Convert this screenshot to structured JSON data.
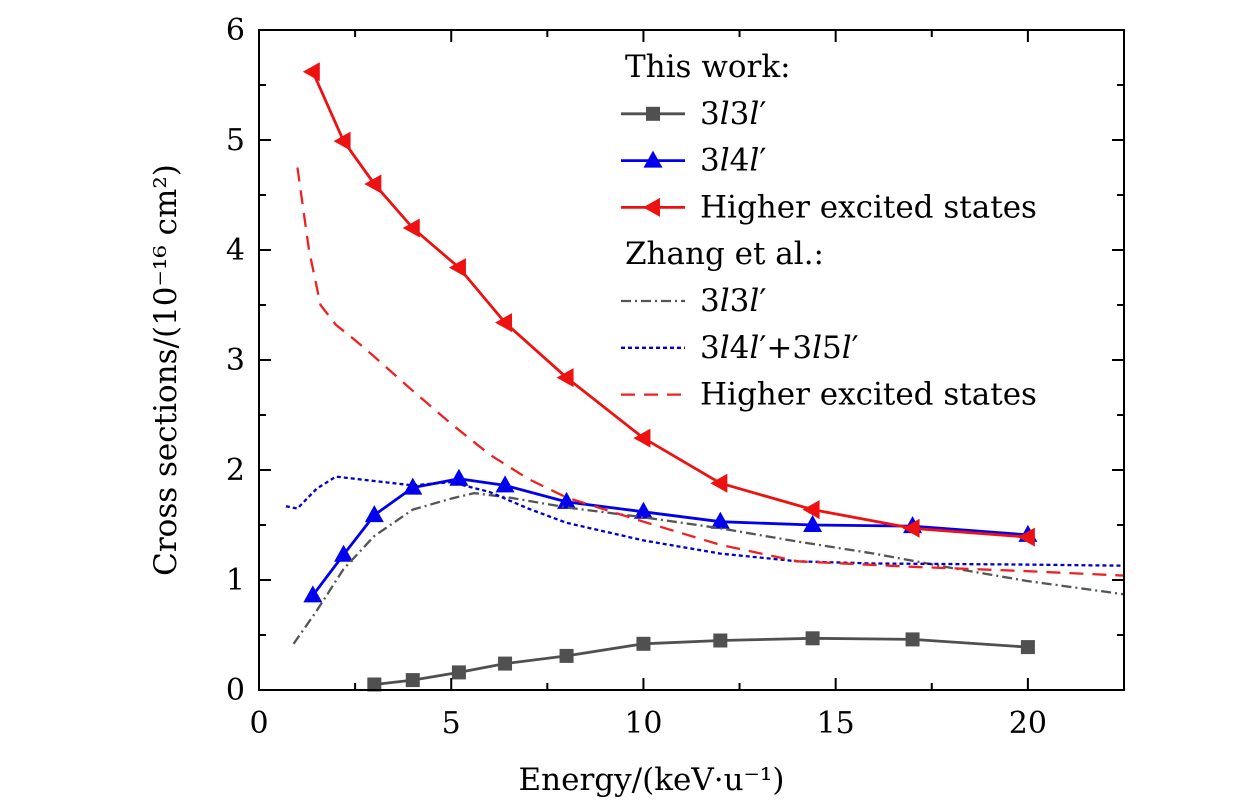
{
  "chart_data": {
    "type": "line",
    "xlabel": "Energy/(keV·u⁻¹)",
    "ylabel": "Cross sections/(10⁻¹⁶ cm²)",
    "xlim": [
      0,
      22.5
    ],
    "ylim": [
      0,
      6
    ],
    "x_ticks": [
      "0",
      "5",
      "10",
      "15",
      "20"
    ],
    "y_ticks": [
      "0",
      "1",
      "2",
      "3",
      "4",
      "5",
      "6"
    ],
    "legend_position": "top-right",
    "legend_groups": [
      {
        "heading": "This work:",
        "entries": [
          "3l3l′",
          "3l4l′",
          "Higher excited states"
        ]
      },
      {
        "heading": "Zhang et al.:",
        "entries": [
          "3l3l′",
          "3l4l′+3l5l′",
          "Higher excited states"
        ]
      }
    ],
    "series": [
      {
        "name": "3l3l′",
        "group": "This work:",
        "color": "#505050",
        "style": "solid",
        "marker": "square",
        "x": [
          3,
          4,
          5.2,
          6.4,
          8,
          10,
          12,
          14.4,
          17,
          20
        ],
        "y": [
          0.05,
          0.09,
          0.16,
          0.24,
          0.31,
          0.42,
          0.45,
          0.47,
          0.46,
          0.39
        ]
      },
      {
        "name": "3l4l′",
        "group": "This work:",
        "color": "#0000ee",
        "style": "solid",
        "marker": "triangle-up",
        "x": [
          1.4,
          2.2,
          3,
          4,
          5.2,
          6.4,
          8,
          10,
          12,
          14.4,
          17,
          20
        ],
        "y": [
          0.86,
          1.23,
          1.59,
          1.84,
          1.92,
          1.86,
          1.71,
          1.62,
          1.53,
          1.5,
          1.49,
          1.41
        ]
      },
      {
        "name": "Higher excited states",
        "group": "This work:",
        "color": "#ee1111",
        "style": "solid",
        "marker": "triangle-left",
        "x": [
          1.4,
          2.2,
          3,
          4,
          5.2,
          6.4,
          8,
          10,
          12,
          14.4,
          17,
          20
        ],
        "y": [
          5.62,
          4.99,
          4.6,
          4.2,
          3.84,
          3.34,
          2.84,
          2.29,
          1.88,
          1.64,
          1.47,
          1.39
        ]
      },
      {
        "name": "3l3l′",
        "group": "Zhang et al.:",
        "color": "#555555",
        "style": "dashdot",
        "marker": "none",
        "x": [
          0.9,
          1.5,
          2.2,
          3,
          4,
          5,
          5.6,
          6.5,
          8,
          10,
          12,
          14,
          16,
          18,
          20,
          22.5
        ],
        "y": [
          0.42,
          0.72,
          1.1,
          1.4,
          1.64,
          1.74,
          1.79,
          1.75,
          1.66,
          1.57,
          1.47,
          1.35,
          1.24,
          1.11,
          0.99,
          0.87
        ]
      },
      {
        "name": "3l4l′+3l5l′",
        "group": "Zhang et al.:",
        "color": "#0000cc",
        "style": "dotted",
        "marker": "none",
        "x": [
          0.7,
          1.0,
          1.5,
          2.0,
          3,
          4,
          5,
          6,
          7,
          8,
          10,
          12,
          14,
          16,
          20,
          22.5
        ],
        "y": [
          1.67,
          1.65,
          1.83,
          1.94,
          1.9,
          1.86,
          1.89,
          1.8,
          1.65,
          1.52,
          1.36,
          1.24,
          1.17,
          1.15,
          1.14,
          1.13
        ]
      },
      {
        "name": "Higher excited states",
        "group": "Zhang et al.:",
        "color": "#ee2222",
        "style": "dashed",
        "marker": "none",
        "x": [
          1.0,
          1.3,
          1.6,
          2.0,
          2.5,
          3,
          4,
          5,
          6,
          7,
          8,
          10,
          12,
          14,
          17,
          20,
          22.5
        ],
        "y": [
          4.75,
          4.0,
          3.5,
          3.32,
          3.18,
          3.03,
          2.72,
          2.42,
          2.14,
          1.92,
          1.75,
          1.53,
          1.32,
          1.17,
          1.12,
          1.08,
          1.04
        ]
      }
    ]
  }
}
